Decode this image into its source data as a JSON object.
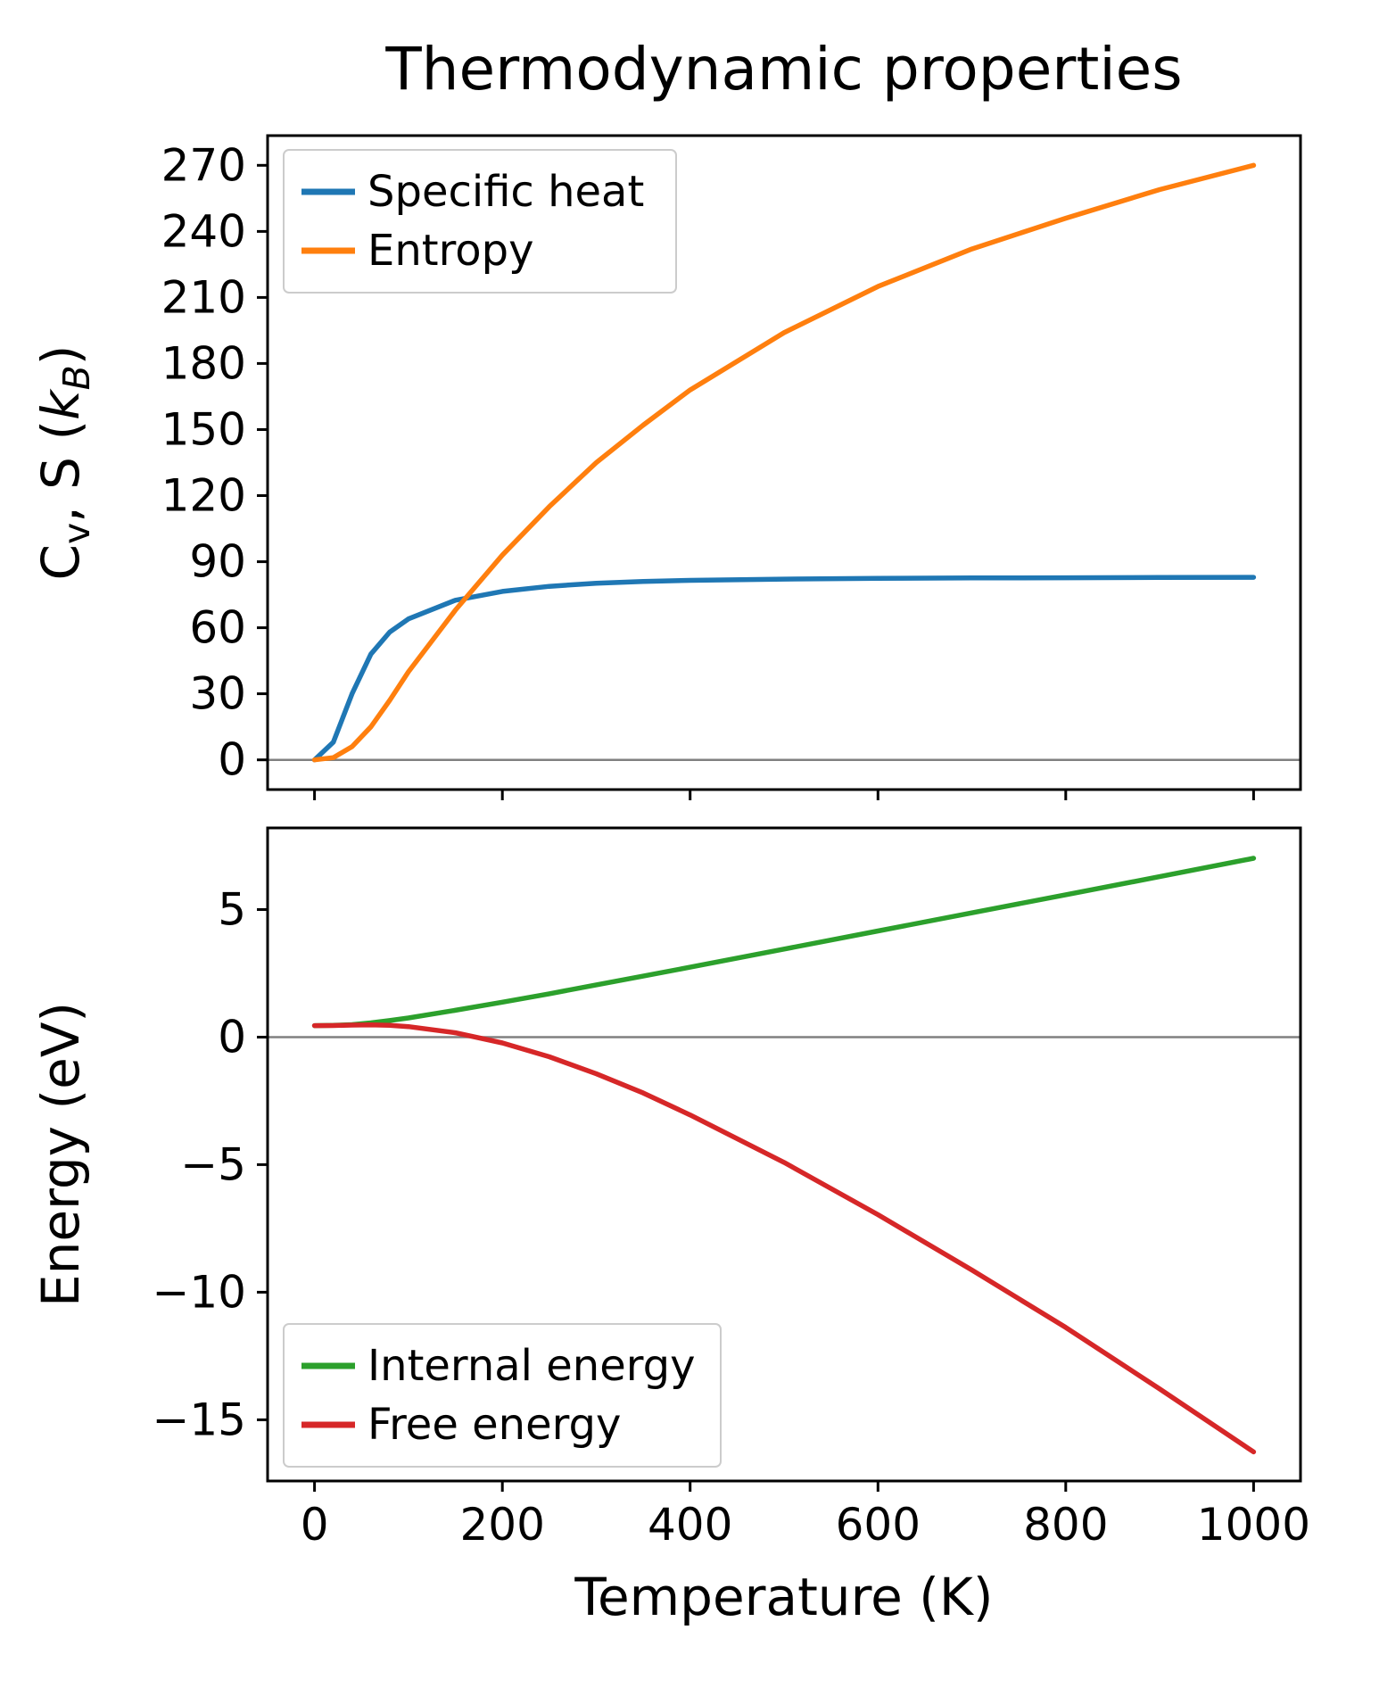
{
  "figure": {
    "title": "Thermodynamic properties",
    "xlabel": "Temperature (K)",
    "background": "#ffffff",
    "spine_color": "#000000",
    "zero_line_color": "#808080"
  },
  "chart_data": [
    {
      "type": "line",
      "title": "Thermodynamic properties",
      "xlabel": "",
      "ylabel": "Cv, S (kB)",
      "ylabel_segments": [
        {
          "text": "C"
        },
        {
          "text": "v",
          "sub": true
        },
        {
          "text": ", S ("
        },
        {
          "text": "k",
          "italic": true
        },
        {
          "text": "B",
          "sub": true,
          "italic": true
        },
        {
          "text": ")"
        }
      ],
      "xlim": [
        -50,
        1050
      ],
      "ylim": [
        -13.5,
        283.5
      ],
      "xticks": [
        0,
        200,
        400,
        600,
        800,
        1000
      ],
      "show_xtick_labels": false,
      "yticks": [
        0,
        30,
        60,
        90,
        120,
        150,
        180,
        210,
        240,
        270
      ],
      "zero_line": true,
      "grid": false,
      "x": [
        0,
        20,
        40,
        60,
        80,
        100,
        150,
        200,
        250,
        300,
        350,
        400,
        500,
        600,
        700,
        800,
        900,
        1000
      ],
      "series": [
        {
          "name": "Specific heat",
          "color": "#1f77b4",
          "values": [
            0,
            8,
            30,
            48,
            58,
            64,
            72.5,
            76.5,
            78.8,
            80.2,
            81,
            81.5,
            82.1,
            82.4,
            82.6,
            82.7,
            82.8,
            82.9
          ]
        },
        {
          "name": "Entropy",
          "color": "#ff7f0e",
          "values": [
            0,
            1,
            6,
            15,
            27,
            40,
            68,
            93,
            115,
            135,
            152,
            168,
            194,
            215,
            232,
            246,
            259,
            270
          ]
        }
      ],
      "legend": {
        "position": "upper-left",
        "labels": [
          "Specific heat",
          "Entropy"
        ]
      }
    },
    {
      "type": "line",
      "title": "",
      "xlabel": "Temperature (K)",
      "ylabel": "Energy (eV)",
      "ylabel_segments": [
        {
          "text": "Energy (eV)"
        }
      ],
      "xlim": [
        -50,
        1050
      ],
      "ylim": [
        -17.4,
        8.2
      ],
      "xticks": [
        0,
        200,
        400,
        600,
        800,
        1000
      ],
      "show_xtick_labels": true,
      "yticks": [
        -15,
        -10,
        -5,
        0,
        5
      ],
      "zero_line": true,
      "grid": false,
      "x": [
        0,
        20,
        40,
        60,
        80,
        100,
        150,
        200,
        250,
        300,
        350,
        400,
        500,
        600,
        700,
        800,
        900,
        1000
      ],
      "series": [
        {
          "name": "Internal energy",
          "color": "#2ca02c",
          "values": [
            0.45,
            0.46,
            0.49,
            0.56,
            0.65,
            0.75,
            1.05,
            1.37,
            1.7,
            2.05,
            2.39,
            2.74,
            3.45,
            4.16,
            4.87,
            5.58,
            6.29,
            7.01
          ]
        },
        {
          "name": "Free energy",
          "color": "#d62728",
          "values": [
            0.45,
            0.455,
            0.47,
            0.48,
            0.46,
            0.41,
            0.17,
            -0.23,
            -0.77,
            -1.44,
            -2.19,
            -3.05,
            -4.91,
            -6.96,
            -9.13,
            -11.38,
            -13.79,
            -16.26
          ]
        }
      ],
      "legend": {
        "position": "lower-left",
        "labels": [
          "Internal energy",
          "Free energy"
        ]
      }
    }
  ]
}
